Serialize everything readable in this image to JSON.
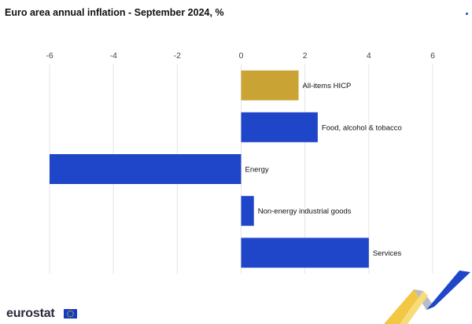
{
  "title": "Euro area annual inflation - September 2024, %",
  "colors": {
    "highlight": "#c9a435",
    "bar": "#1f46c9",
    "grid": "#e4e4e4"
  },
  "brand": {
    "name": "eurostat",
    "flag_icon": "eu-flag-icon",
    "ribbon_icon": "eurostat-ribbon-icon"
  },
  "chart_data": {
    "type": "bar",
    "orientation": "horizontal",
    "title": "Euro area annual inflation - September 2024, %",
    "xlabel": "",
    "ylabel": "",
    "xlim": [
      -6,
      6
    ],
    "grid": true,
    "ticks": [
      "-6",
      "-4",
      "-2",
      "0",
      "2",
      "4",
      "6"
    ],
    "categories": [
      "All-items HICP",
      "Food, alcohol & tobacco",
      "Energy",
      "Non-energy industrial goods",
      "Services"
    ],
    "values": [
      1.8,
      2.4,
      -6.0,
      0.4,
      4.0
    ],
    "highlight": [
      "All-items HICP"
    ]
  }
}
